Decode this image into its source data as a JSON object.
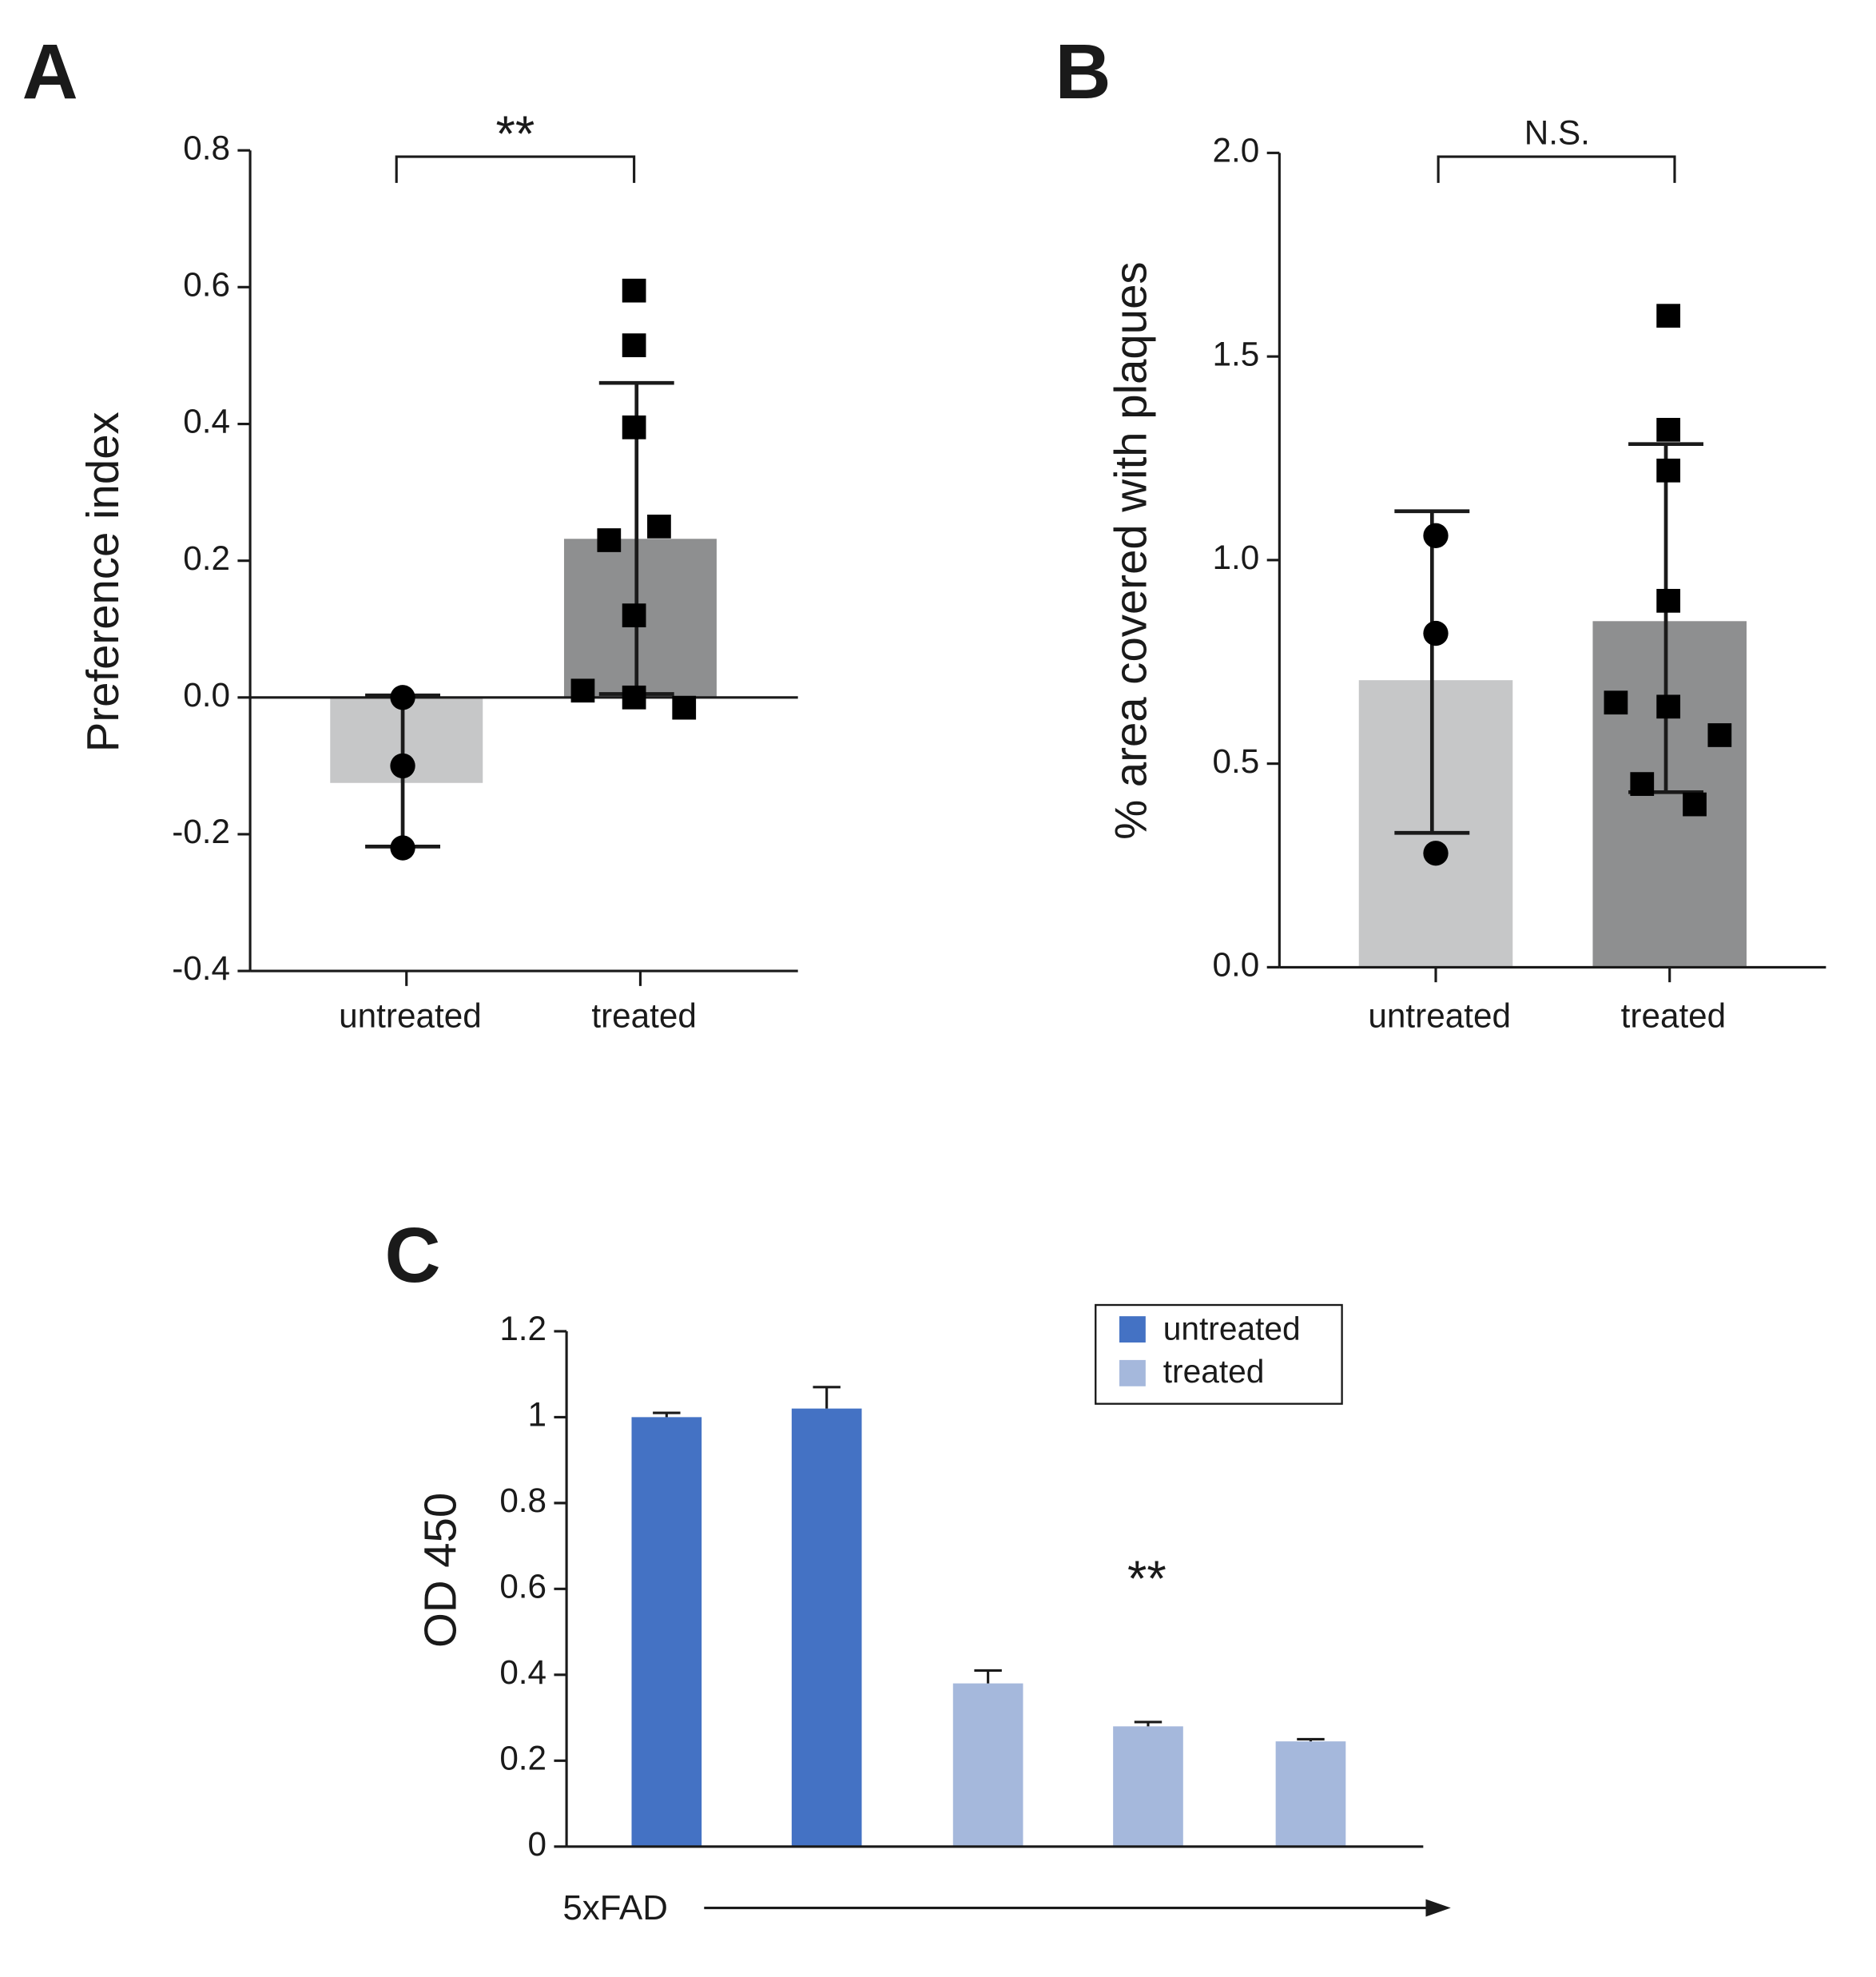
{
  "chart_data": [
    {
      "type": "bar",
      "panel_label": "A",
      "ylabel": "Preference index",
      "annotation": "**",
      "categories": [
        "untreated",
        "treated"
      ],
      "values": [
        -0.125,
        0.232
      ],
      "error_low": [
        -0.218,
        0.005
      ],
      "error_high": [
        0.003,
        0.46
      ],
      "colors": [
        "#c6c7c8",
        "#8e8f90"
      ],
      "point_markers": [
        "circle",
        "square"
      ],
      "points": [
        [
          0,
          -0.1,
          -0.22
        ],
        [
          0.595,
          0.515,
          0.395,
          0.23,
          0.25,
          0.12,
          0.01,
          0,
          -0.015
        ]
      ],
      "ylim": [
        -0.4,
        0.8
      ],
      "yticks": [
        -0.4,
        -0.2,
        {
          "value": 0,
          "label": "0.0"
        },
        0.2,
        0.4,
        0.6,
        0.8
      ]
    },
    {
      "type": "bar",
      "panel_label": "B",
      "ylabel": "% area covered with plaques",
      "annotation": "N.S.",
      "categories": [
        "untreated",
        "treated"
      ],
      "values": [
        0.705,
        0.85
      ],
      "error_low": [
        0.33,
        0.43
      ],
      "error_high": [
        1.12,
        1.285
      ],
      "colors": [
        "#c6c7c8",
        "#8e8f90"
      ],
      "point_markers": [
        "circle",
        "square"
      ],
      "points": [
        [
          1.06,
          0.82,
          0.28
        ],
        [
          1.6,
          1.32,
          1.22,
          0.9,
          0.65,
          0.64,
          0.57,
          0.45,
          0.4
        ]
      ],
      "ylim": [
        0,
        2
      ],
      "yticks": [
        {
          "value": 0,
          "label": "0.0"
        },
        0.5,
        {
          "value": 1,
          "label": "1.0"
        },
        1.5,
        {
          "value": 2,
          "label": "2.0"
        }
      ]
    },
    {
      "type": "bar",
      "panel_label": "C",
      "ylabel": "OD 450",
      "annotation": "**",
      "xlabel": "5xFAD",
      "categories": [
        null,
        null,
        null,
        null,
        null
      ],
      "series": [
        {
          "name": "untreated",
          "color": "#4472c4",
          "values": [
            1.0,
            1.02,
            null,
            null,
            null
          ],
          "errors": [
            0.01,
            0.05,
            null,
            null,
            null
          ]
        },
        {
          "name": "treated",
          "color": "#a5b8dc",
          "values": [
            null,
            null,
            0.38,
            0.28,
            0.245
          ],
          "errors": [
            null,
            null,
            0.03,
            0.01,
            0.005
          ]
        }
      ],
      "ylim": [
        0,
        1.2
      ],
      "yticks": [
        0,
        0.2,
        0.4,
        0.6,
        0.8,
        1,
        1.2
      ]
    }
  ]
}
